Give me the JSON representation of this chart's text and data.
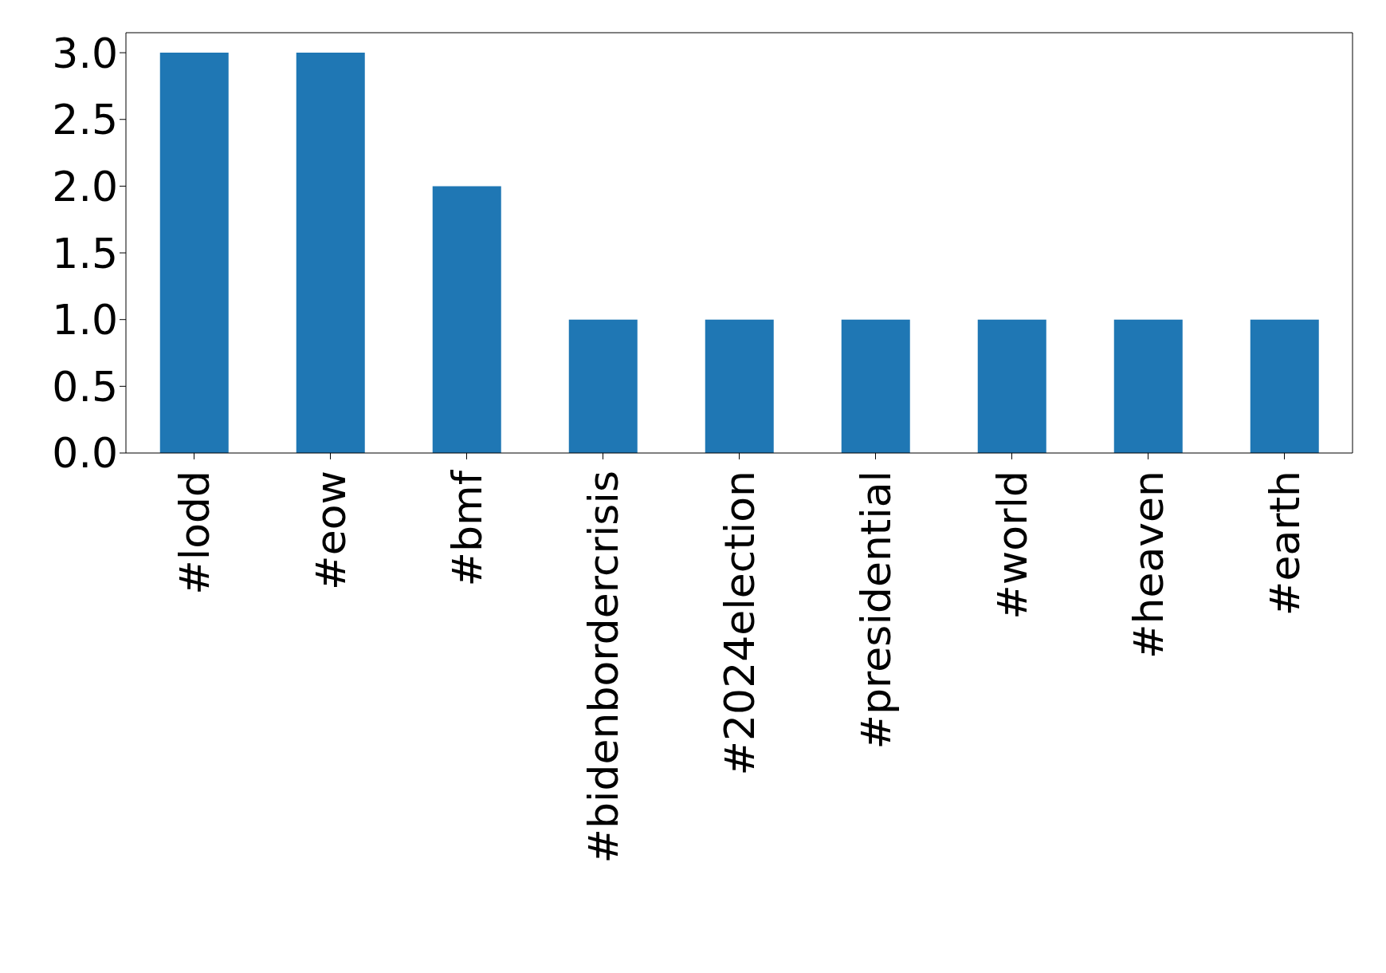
{
  "chart_data": {
    "type": "bar",
    "categories": [
      "#lodd",
      "#eow",
      "#bmf",
      "#bidenbordercrisis",
      "#2024election",
      "#presidential",
      "#world",
      "#heaven",
      "#earth"
    ],
    "values": [
      3,
      3,
      2,
      1,
      1,
      1,
      1,
      1,
      1
    ],
    "color": "#1f77b4",
    "ylim": [
      0,
      3.15
    ],
    "yticks": [
      {
        "value": 0,
        "label": "0.0"
      },
      {
        "value": 0.5,
        "label": "0.5"
      },
      {
        "value": 1,
        "label": "1.0"
      },
      {
        "value": 1.5,
        "label": "1.5"
      },
      {
        "value": 2,
        "label": "2.0"
      },
      {
        "value": 2.5,
        "label": "2.5"
      },
      {
        "value": 3,
        "label": "3.0"
      }
    ],
    "grid": false,
    "legend": false
  }
}
